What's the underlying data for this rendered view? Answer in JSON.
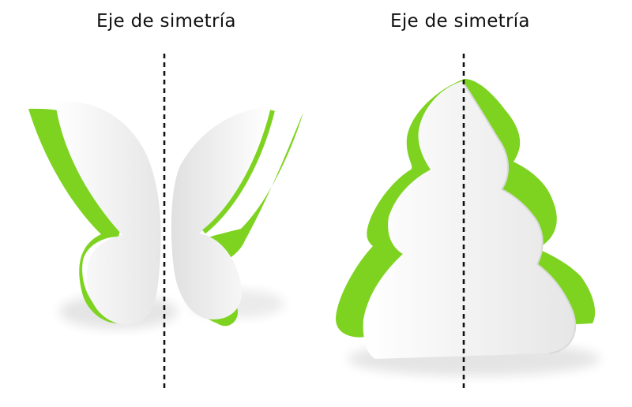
{
  "labels": {
    "left_axis": "Eje de simetría",
    "right_axis": "Eje de simetría"
  },
  "colors": {
    "paper_green": "#7ed321",
    "paper_white": "#f2f2f2",
    "axis_line": "#111111"
  }
}
